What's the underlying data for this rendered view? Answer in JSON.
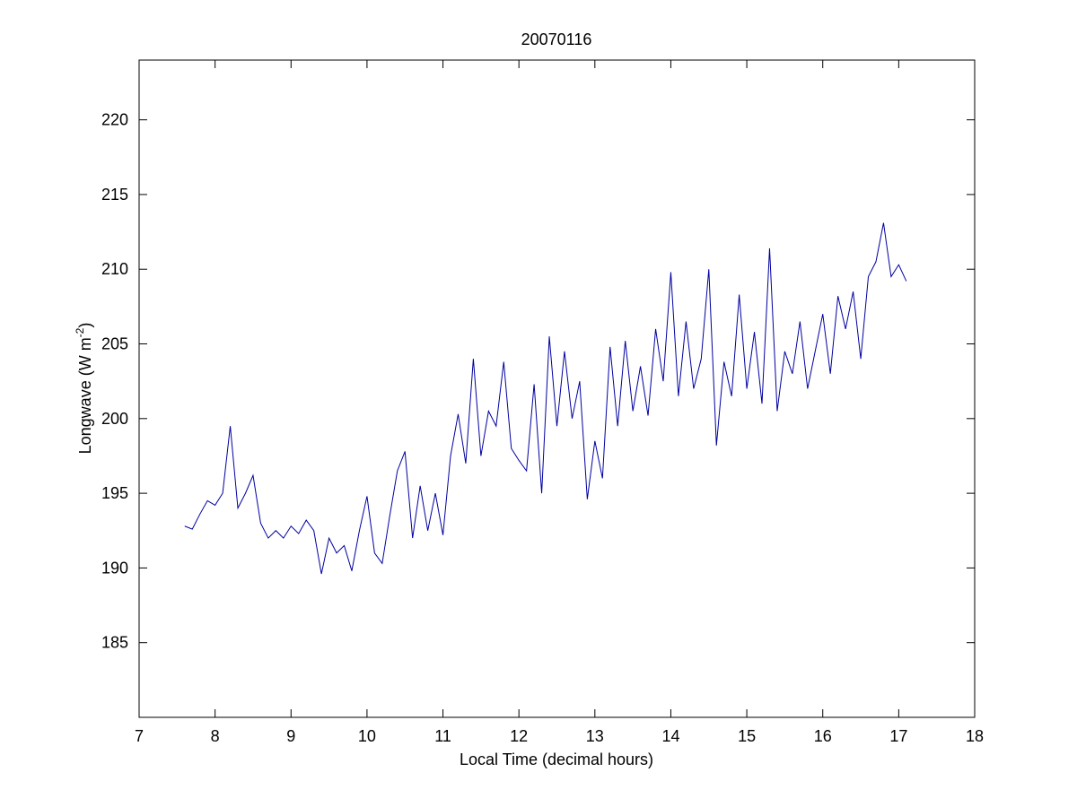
{
  "chart_data": {
    "type": "line",
    "title": "20070116",
    "x_label": "Local Time (decimal hours)",
    "y_label": [
      "Longwave (W m",
      "-2",
      ")"
    ],
    "x": [
      7.6,
      7.7,
      7.8,
      7.9,
      8.0,
      8.1,
      8.2,
      8.3,
      8.4,
      8.5,
      8.6,
      8.7,
      8.8,
      8.9,
      9.0,
      9.1,
      9.2,
      9.3,
      9.4,
      9.5,
      9.6,
      9.7,
      9.8,
      9.9,
      10.0,
      10.1,
      10.2,
      10.3,
      10.4,
      10.5,
      10.6,
      10.7,
      10.8,
      10.9,
      11.0,
      11.1,
      11.2,
      11.3,
      11.4,
      11.5,
      11.6,
      11.7,
      11.8,
      11.9,
      12.0,
      12.1,
      12.2,
      12.3,
      12.4,
      12.5,
      12.6,
      12.7,
      12.8,
      12.9,
      13.0,
      13.1,
      13.2,
      13.3,
      13.4,
      13.5,
      13.6,
      13.7,
      13.8,
      13.9,
      14.0,
      14.1,
      14.2,
      14.3,
      14.4,
      14.5,
      14.6,
      14.7,
      14.8,
      14.9,
      15.0,
      15.1,
      15.2,
      15.3,
      15.4,
      15.5,
      15.6,
      15.7,
      15.8,
      15.9,
      16.0,
      16.1,
      16.2,
      16.3,
      16.4,
      16.5,
      16.6,
      16.7,
      16.8,
      16.9,
      17.0,
      17.1
    ],
    "series": [
      {
        "name": "Longwave",
        "color": "#0000a0",
        "values": [
          192.8,
          192.6,
          193.6,
          194.5,
          194.2,
          195.0,
          199.5,
          194.0,
          195.0,
          196.2,
          193.0,
          192.0,
          192.5,
          192.0,
          192.8,
          192.3,
          193.2,
          192.5,
          189.6,
          192.0,
          191.0,
          191.5,
          189.8,
          192.5,
          194.8,
          191.0,
          190.3,
          193.5,
          196.5,
          197.8,
          192.0,
          195.5,
          192.5,
          195.0,
          192.2,
          197.5,
          200.3,
          197.0,
          204.0,
          197.5,
          200.5,
          199.5,
          203.8,
          198.0,
          197.2,
          196.5,
          202.3,
          195.0,
          205.5,
          199.5,
          204.5,
          200.0,
          202.5,
          194.6,
          198.5,
          196.0,
          204.8,
          199.5,
          205.2,
          200.5,
          203.5,
          200.2,
          206.0,
          202.5,
          209.8,
          201.5,
          206.5,
          202.0,
          204.0,
          210.0,
          198.2,
          203.8,
          201.5,
          208.3,
          202.0,
          205.8,
          201.0,
          211.4,
          200.5,
          204.5,
          203.0,
          206.5,
          202.0,
          204.5,
          207.0,
          203.0,
          208.2,
          206.0,
          208.5,
          204.0,
          209.5,
          210.5,
          213.1,
          209.5,
          210.3,
          209.2
        ]
      }
    ],
    "xlim": [
      7,
      18
    ],
    "xticks": [
      7,
      8,
      9,
      10,
      11,
      12,
      13,
      14,
      15,
      16,
      17,
      18
    ],
    "ylim": [
      180,
      224
    ],
    "yticks": [
      185,
      190,
      195,
      200,
      205,
      210,
      215,
      220
    ],
    "grid": false
  }
}
